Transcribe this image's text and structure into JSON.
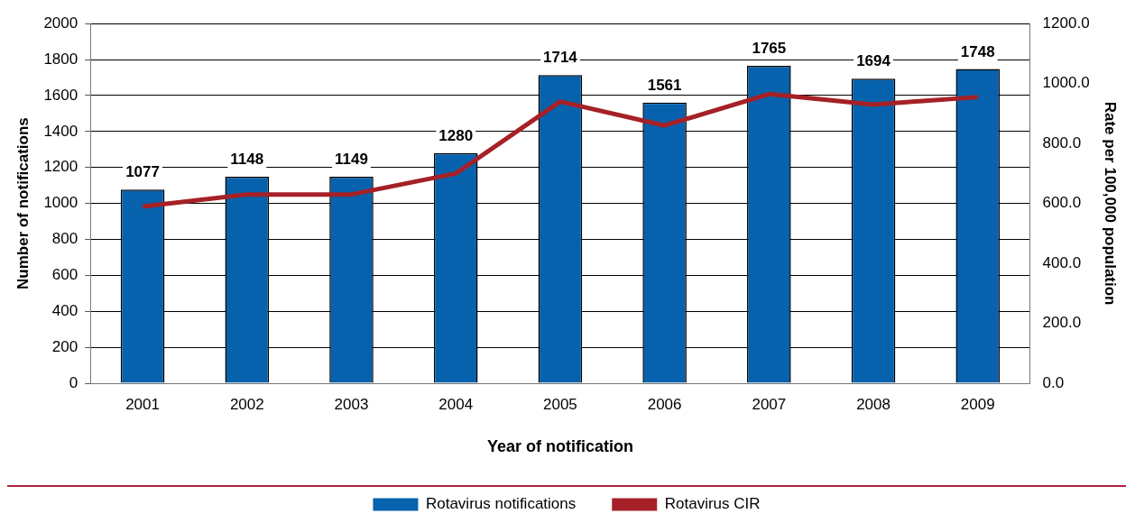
{
  "chart_data": {
    "type": "bar",
    "xlabel": "Year of notification",
    "ylabel": "Number of notifications",
    "y2label": "Rate per 100,000 population",
    "categories": [
      "2001",
      "2002",
      "2003",
      "2004",
      "2005",
      "2006",
      "2007",
      "2008",
      "2009"
    ],
    "series": [
      {
        "name": "Rotavirus notifications",
        "color": "#0762ad",
        "values": [
          1077,
          1148,
          1149,
          1280,
          1714,
          1561,
          1765,
          1694,
          1748
        ],
        "value_labels": [
          "1077",
          "1148",
          "1149",
          "1280",
          "1714",
          "1561",
          "1765",
          "1694",
          "1748"
        ]
      },
      {
        "name": "Rotavirus CIR",
        "type": "line",
        "axis": "y2",
        "color": "#a52127",
        "values": [
          590,
          630,
          630,
          700,
          940,
          860,
          965,
          930,
          955
        ]
      }
    ],
    "ylim": [
      0,
      2000
    ],
    "yticks": [
      0,
      200,
      400,
      600,
      800,
      1000,
      1200,
      1400,
      1600,
      1800,
      2000
    ],
    "y2lim": [
      0,
      1200
    ],
    "y2ticks": [
      {
        "value": 0,
        "label": "0.0"
      },
      {
        "value": 200,
        "label": "200.0"
      },
      {
        "value": 400,
        "label": "400.0"
      },
      {
        "value": 600,
        "label": "600.0"
      },
      {
        "value": 800,
        "label": "800.0"
      },
      {
        "value": 1000,
        "label": "1000.0"
      },
      {
        "value": 1200,
        "label": "1200.0"
      }
    ],
    "grid": "y",
    "legend": "bottom",
    "marker": "none",
    "line_style": "solid"
  }
}
